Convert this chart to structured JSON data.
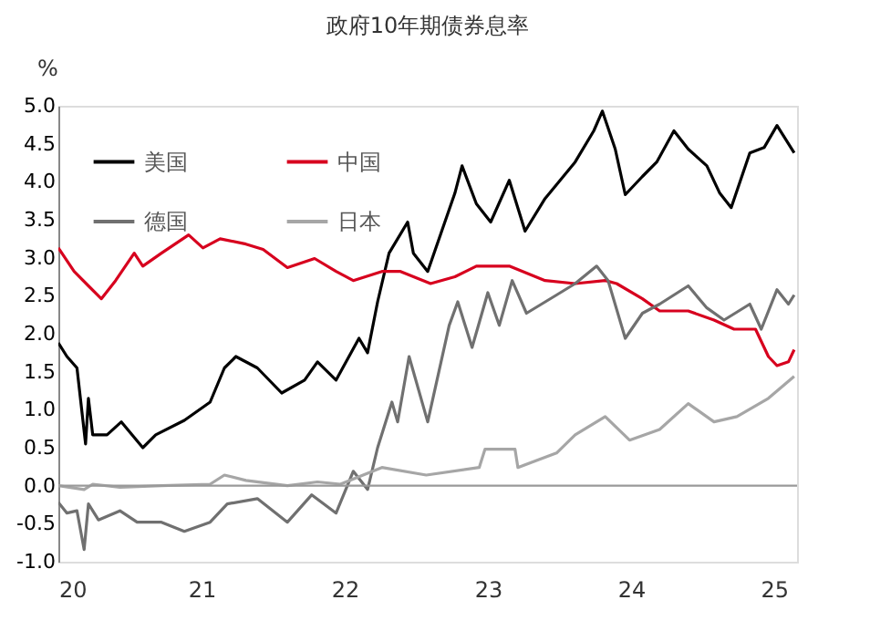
{
  "chart_data": {
    "type": "line",
    "title": "政府10年期债券息率",
    "ylabel": "%",
    "xlim": [
      2020,
      2025.16
    ],
    "xticks": [
      {
        "value": 2020,
        "label": "20"
      },
      {
        "value": 2021,
        "label": "21"
      },
      {
        "value": 2022,
        "label": "22"
      },
      {
        "value": 2023,
        "label": "23"
      },
      {
        "value": 2024,
        "label": "24"
      },
      {
        "value": 2025,
        "label": "25"
      }
    ],
    "ylim": [
      -1.0,
      5.0
    ],
    "yticks": [
      {
        "value": -1,
        "label": "-1.0"
      },
      {
        "value": -0.5,
        "label": "-0.5"
      },
      {
        "value": 0,
        "label": "0.0"
      },
      {
        "value": 0.5,
        "label": "0.5"
      },
      {
        "value": 1,
        "label": "1.0"
      },
      {
        "value": 1.5,
        "label": "1.5"
      },
      {
        "value": 2,
        "label": "2.0"
      },
      {
        "value": 2.5,
        "label": "2.5"
      },
      {
        "value": 3,
        "label": "3.0"
      },
      {
        "value": 3.5,
        "label": "3.5"
      },
      {
        "value": 4,
        "label": "4.0"
      },
      {
        "value": 4.5,
        "label": "4.5"
      },
      {
        "value": 5,
        "label": "5.0"
      }
    ],
    "grid": false,
    "legend": "top left",
    "marker": "none",
    "line_style": "solid",
    "ref_lines": [
      {
        "axis": "y",
        "value": 0,
        "color": "#999999"
      }
    ],
    "series": [
      {
        "name": "美国",
        "color": "#000000",
        "x": [
          2020.0,
          2020.06,
          2020.13,
          2020.19,
          2020.21,
          2020.24,
          2020.34,
          2020.44,
          2020.59,
          2020.68,
          2020.88,
          2021.06,
          2021.16,
          2021.24,
          2021.39,
          2021.56,
          2021.72,
          2021.81,
          2021.94,
          2022.1,
          2022.16,
          2022.23,
          2022.31,
          2022.44,
          2022.48,
          2022.58,
          2022.77,
          2022.82,
          2022.92,
          2023.02,
          2023.15,
          2023.26,
          2023.4,
          2023.61,
          2023.74,
          2023.8,
          2023.89,
          2023.96,
          2024.08,
          2024.18,
          2024.3,
          2024.4,
          2024.53,
          2024.62,
          2024.7,
          2024.83,
          2024.93,
          2025.02,
          2025.14
        ],
        "values": [
          1.88,
          1.7,
          1.55,
          0.55,
          1.15,
          0.67,
          0.67,
          0.84,
          0.5,
          0.67,
          0.86,
          1.1,
          1.55,
          1.7,
          1.55,
          1.22,
          1.39,
          1.63,
          1.39,
          1.94,
          1.75,
          2.42,
          3.06,
          3.47,
          3.06,
          2.82,
          3.85,
          4.21,
          3.71,
          3.47,
          4.02,
          3.35,
          3.78,
          4.26,
          4.67,
          4.93,
          4.43,
          3.83,
          4.07,
          4.26,
          4.67,
          4.43,
          4.21,
          3.85,
          3.66,
          4.38,
          4.45,
          4.74,
          4.38
        ]
      },
      {
        "name": "中国",
        "color": "#d7001e",
        "x": [
          2020.0,
          2020.11,
          2020.21,
          2020.3,
          2020.4,
          2020.53,
          2020.59,
          2020.72,
          2020.91,
          2021.01,
          2021.13,
          2021.31,
          2021.43,
          2021.6,
          2021.79,
          2021.94,
          2022.06,
          2022.26,
          2022.39,
          2022.6,
          2022.77,
          2022.92,
          2023.15,
          2023.4,
          2023.61,
          2023.82,
          2023.9,
          2024.08,
          2024.2,
          2024.4,
          2024.58,
          2024.72,
          2024.87,
          2024.96,
          2025.02,
          2025.1,
          2025.14
        ],
        "values": [
          3.13,
          2.82,
          2.63,
          2.46,
          2.7,
          3.06,
          2.89,
          3.06,
          3.3,
          3.13,
          3.25,
          3.18,
          3.11,
          2.87,
          2.99,
          2.82,
          2.7,
          2.82,
          2.82,
          2.66,
          2.75,
          2.89,
          2.89,
          2.7,
          2.66,
          2.7,
          2.66,
          2.46,
          2.3,
          2.3,
          2.18,
          2.06,
          2.06,
          1.7,
          1.58,
          1.63,
          1.79
        ]
      },
      {
        "name": "德国",
        "color": "#707070",
        "x": [
          2020.0,
          2020.06,
          2020.13,
          2020.18,
          2020.21,
          2020.28,
          2020.43,
          2020.55,
          2020.72,
          2020.88,
          2021.06,
          2021.18,
          2021.39,
          2021.6,
          2021.77,
          2021.94,
          2022.06,
          2022.16,
          2022.23,
          2022.33,
          2022.37,
          2022.45,
          2022.58,
          2022.73,
          2022.79,
          2022.89,
          2023.0,
          2023.08,
          2023.17,
          2023.27,
          2023.48,
          2023.61,
          2023.76,
          2023.84,
          2023.96,
          2024.08,
          2024.2,
          2024.4,
          2024.53,
          2024.65,
          2024.83,
          2024.91,
          2025.02,
          2025.1,
          2025.14
        ],
        "values": [
          -0.22,
          -0.36,
          -0.33,
          -0.84,
          -0.24,
          -0.45,
          -0.33,
          -0.48,
          -0.48,
          -0.6,
          -0.48,
          -0.24,
          -0.17,
          -0.48,
          -0.12,
          -0.36,
          0.19,
          -0.05,
          0.5,
          1.1,
          0.84,
          1.7,
          0.84,
          2.11,
          2.42,
          1.82,
          2.54,
          2.11,
          2.7,
          2.27,
          2.51,
          2.66,
          2.89,
          2.7,
          1.94,
          2.27,
          2.39,
          2.63,
          2.34,
          2.18,
          2.39,
          2.06,
          2.58,
          2.39,
          2.51
        ]
      },
      {
        "name": "日本",
        "color": "#a6a6a6",
        "x": [
          2020.0,
          2020.18,
          2020.24,
          2020.43,
          2020.72,
          2021.06,
          2021.16,
          2021.31,
          2021.6,
          2021.81,
          2021.97,
          2022.26,
          2022.57,
          2022.94,
          2022.98,
          2023.19,
          2023.21,
          2023.48,
          2023.61,
          2023.82,
          2023.99,
          2024.2,
          2024.4,
          2024.58,
          2024.74,
          2024.96,
          2025.14
        ],
        "values": [
          0.0,
          -0.05,
          0.02,
          -0.02,
          0.0,
          0.02,
          0.14,
          0.07,
          0.0,
          0.05,
          0.02,
          0.24,
          0.14,
          0.24,
          0.48,
          0.48,
          0.24,
          0.43,
          0.67,
          0.91,
          0.6,
          0.74,
          1.08,
          0.84,
          0.91,
          1.15,
          1.44
        ]
      }
    ]
  }
}
